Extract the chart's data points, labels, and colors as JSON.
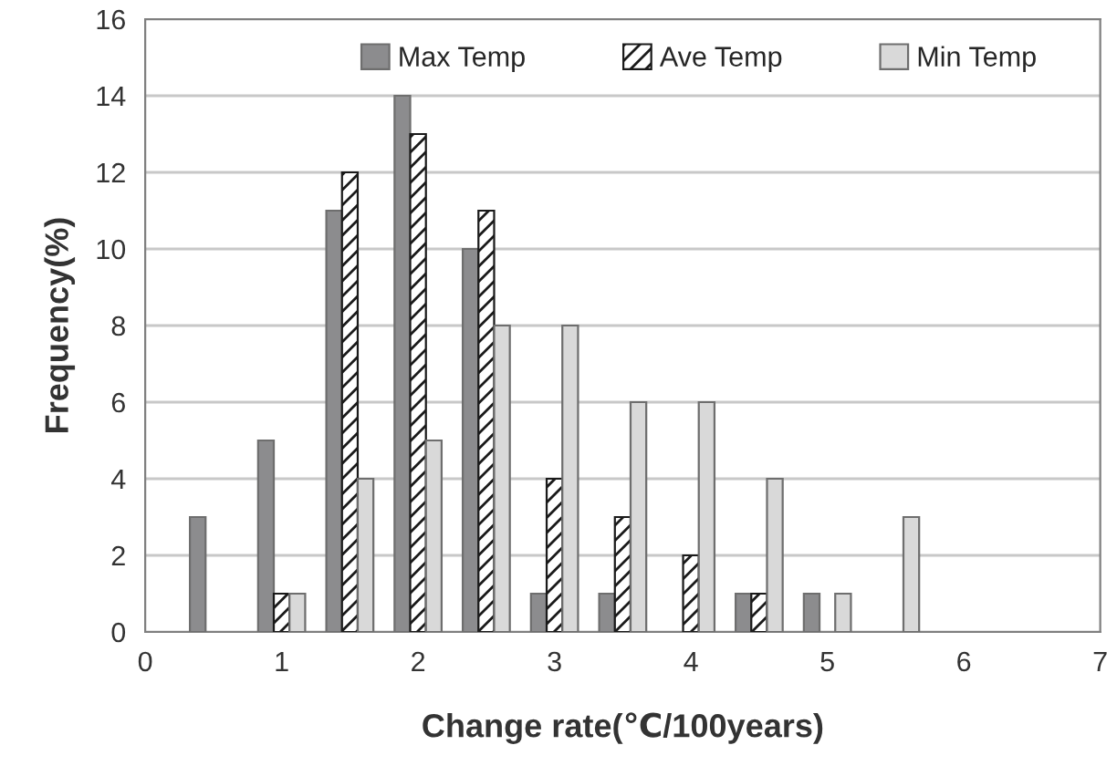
{
  "chart_data": {
    "type": "bar",
    "xlabel": "Change rate(℃/100years)",
    "ylabel": "Frequency(%)",
    "x": [
      0.5,
      1,
      1.5,
      2,
      2.5,
      3,
      3.5,
      4,
      4.5,
      5,
      5.5
    ],
    "series": [
      {
        "name": "Max Temp",
        "color": "#8c8c8e",
        "values": [
          3,
          5,
          11,
          14,
          10,
          1,
          1,
          0,
          1,
          1,
          0
        ]
      },
      {
        "name": "Ave Temp",
        "color": "#1a1a1a",
        "values": [
          0,
          1,
          12,
          13,
          11,
          4,
          3,
          2,
          1,
          0,
          0
        ]
      },
      {
        "name": "Min Temp",
        "color": "#d9d9d9",
        "values": [
          0,
          1,
          4,
          5,
          8,
          8,
          6,
          6,
          4,
          1,
          3
        ]
      }
    ],
    "xlim": [
      0,
      7
    ],
    "xticks": [
      0,
      1,
      2,
      3,
      4,
      5,
      6,
      7
    ],
    "ylim": [
      0,
      16
    ],
    "yticks": [
      0,
      2,
      4,
      6,
      8,
      10,
      12,
      14,
      16
    ],
    "grid": "y",
    "legend": "top"
  }
}
